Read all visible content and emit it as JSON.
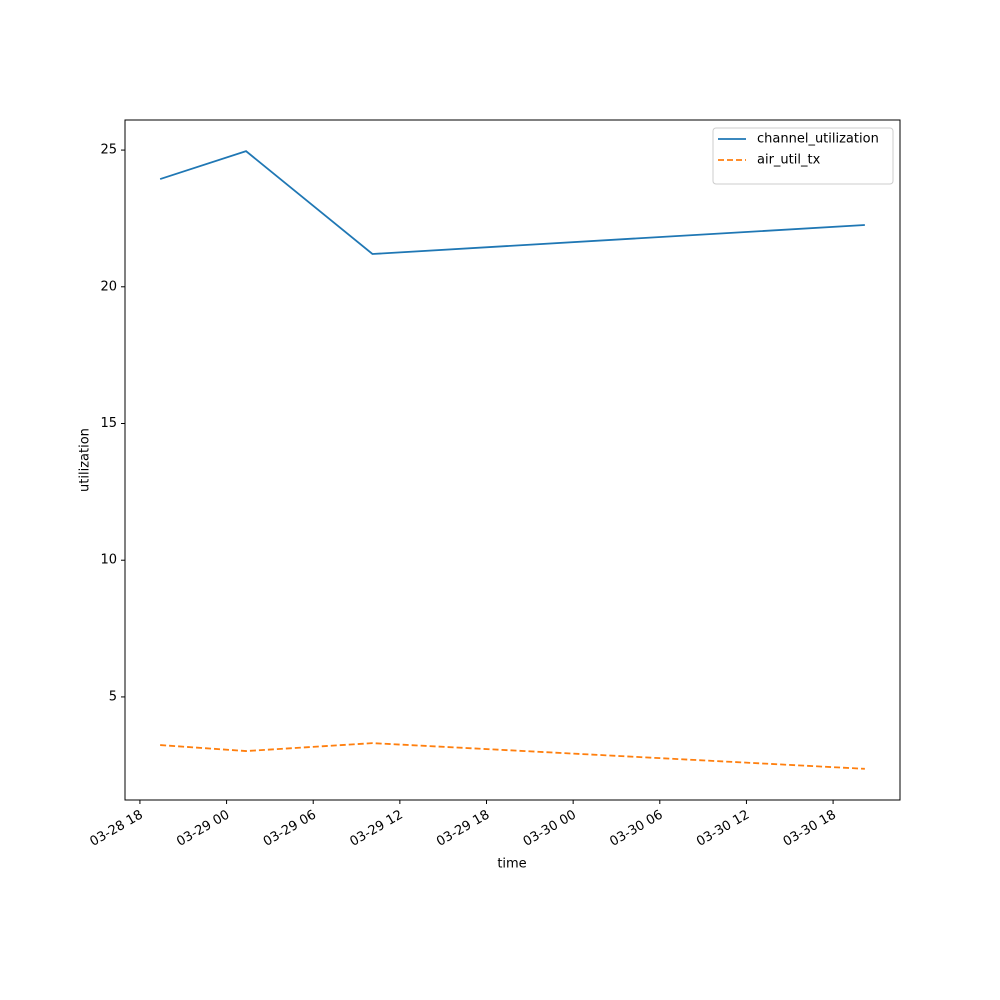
{
  "chart_data": {
    "type": "line",
    "xlabel": "time",
    "ylabel": "utilization",
    "x": [
      "03-28 19:24",
      "03-29 01:21",
      "03-29 10:06",
      "03-30 20:12"
    ],
    "series": [
      {
        "name": "channel_utilization",
        "color": "#1f77b4",
        "linestyle": "solid",
        "values": [
          23.94,
          24.96,
          21.2,
          22.26
        ]
      },
      {
        "name": "air_util_tx",
        "color": "#ff7f0e",
        "linestyle": "dashed",
        "values": [
          3.24,
          3.02,
          3.31,
          2.37
        ]
      }
    ],
    "xlim": [
      "03-28 16:58",
      "03-30 22:38"
    ],
    "xticks": [
      "03-28 18",
      "03-29 00",
      "03-29 06",
      "03-29 12",
      "03-29 18",
      "03-30 00",
      "03-30 06",
      "03-30 12",
      "03-30 18"
    ],
    "ylim": [
      1.23,
      26.1
    ],
    "yticks": [
      5,
      10,
      15,
      20,
      25
    ],
    "grid": false,
    "legend": "upper right"
  }
}
